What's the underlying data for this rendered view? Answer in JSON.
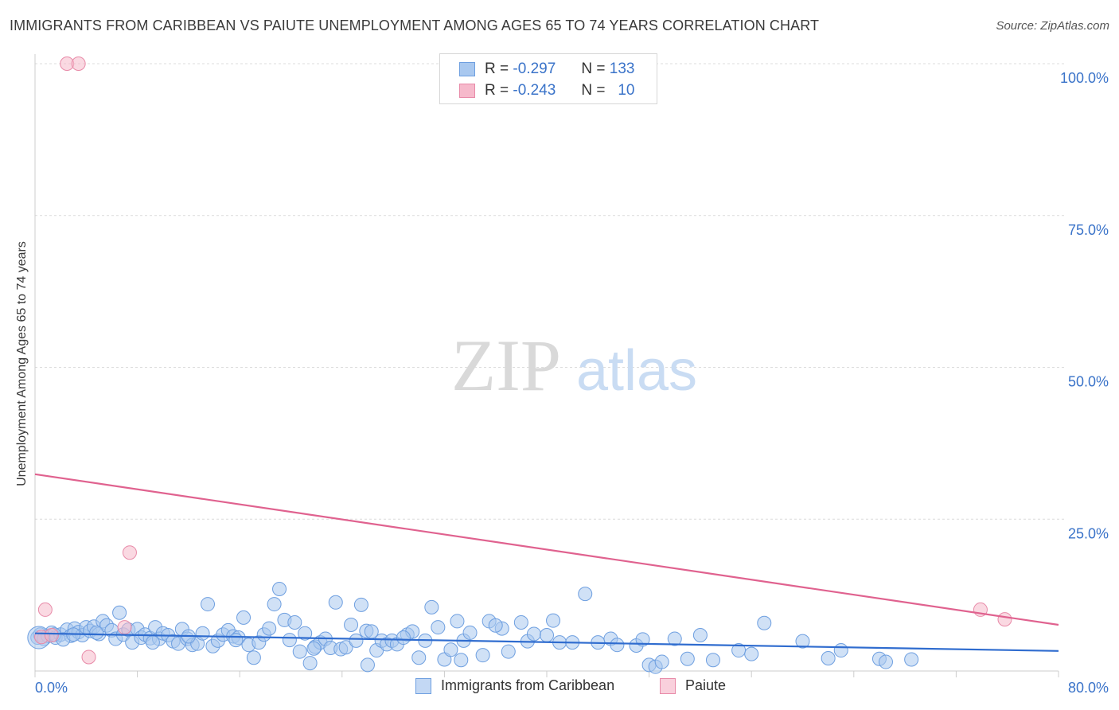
{
  "title": "IMMIGRANTS FROM CARIBBEAN VS PAIUTE UNEMPLOYMENT AMONG AGES 65 TO 74 YEARS CORRELATION CHART",
  "source": "Source: ZipAtlas.com",
  "watermark": {
    "zip": "ZIP",
    "atlas": "atlas"
  },
  "legend": {
    "rows": [
      {
        "r_label": "R =",
        "r_value": "-0.297",
        "n_label": "N =",
        "n_value": "133",
        "color": "#a9c8ef",
        "border": "#6e9fe0"
      },
      {
        "r_label": "R =",
        "r_value": "-0.243",
        "n_label": "N =",
        "n_value": "10",
        "color": "#f6b9cb",
        "border": "#e88aa8"
      }
    ]
  },
  "colors": {
    "blue_fill": "#a9c8ef",
    "blue_stroke": "#6e9fe0",
    "blue_line": "#2f6ccf",
    "pink_fill": "#f6b9cb",
    "pink_stroke": "#e88aa8",
    "pink_line": "#e0628f",
    "axis_text": "#3a73c9"
  },
  "chart_data": {
    "type": "scatter",
    "title": "IMMIGRANTS FROM CARIBBEAN VS PAIUTE UNEMPLOYMENT AMONG AGES 65 TO 74 YEARS CORRELATION CHART",
    "xlabel": "",
    "ylabel": "Unemployment Among Ages 65 to 74 years",
    "xlim": [
      0,
      80
    ],
    "ylim": [
      0,
      100
    ],
    "x_tick_labels": [
      "0.0%",
      "80.0%"
    ],
    "y_ticks": [
      25,
      50,
      75,
      100
    ],
    "y_tick_labels": [
      "25.0%",
      "50.0%",
      "75.0%",
      "100.0%"
    ],
    "grid": true,
    "series": [
      {
        "name": "Immigrants from Caribbean",
        "r": -0.297,
        "n": 133,
        "trend": {
          "x": [
            0,
            80
          ],
          "y": [
            6.2,
            3.3
          ]
        },
        "points": [
          [
            0.2,
            5.5
          ],
          [
            0.4,
            6.0
          ],
          [
            0.7,
            5.3
          ],
          [
            1.0,
            5.8
          ],
          [
            1.3,
            6.3
          ],
          [
            1.6,
            5.5
          ],
          [
            2.0,
            6.0
          ],
          [
            2.5,
            6.8
          ],
          [
            2.8,
            5.8
          ],
          [
            3.1,
            7.0
          ],
          [
            3.4,
            6.4
          ],
          [
            3.7,
            5.9
          ],
          [
            4.0,
            7.2
          ],
          [
            4.3,
            6.6
          ],
          [
            4.6,
            7.3
          ],
          [
            5.0,
            6.1
          ],
          [
            5.3,
            8.2
          ],
          [
            5.6,
            7.5
          ],
          [
            6.0,
            6.7
          ],
          [
            6.3,
            5.3
          ],
          [
            6.6,
            9.6
          ],
          [
            6.9,
            6.0
          ],
          [
            7.3,
            6.8
          ],
          [
            7.6,
            4.7
          ],
          [
            8.0,
            6.9
          ],
          [
            8.3,
            5.5
          ],
          [
            8.6,
            6.0
          ],
          [
            9.0,
            5.4
          ],
          [
            9.4,
            7.2
          ],
          [
            9.7,
            5.3
          ],
          [
            10.0,
            6.2
          ],
          [
            10.4,
            5.9
          ],
          [
            10.8,
            4.9
          ],
          [
            11.2,
            4.5
          ],
          [
            11.5,
            6.9
          ],
          [
            11.9,
            5.3
          ],
          [
            12.3,
            4.3
          ],
          [
            12.7,
            4.5
          ],
          [
            13.1,
            6.2
          ],
          [
            13.5,
            11.0
          ],
          [
            13.9,
            4.1
          ],
          [
            14.3,
            5.0
          ],
          [
            14.7,
            6.0
          ],
          [
            15.1,
            6.7
          ],
          [
            15.5,
            5.7
          ],
          [
            15.9,
            5.5
          ],
          [
            16.3,
            8.8
          ],
          [
            16.7,
            4.3
          ],
          [
            17.1,
            2.2
          ],
          [
            17.5,
            4.7
          ],
          [
            17.9,
            6.0
          ],
          [
            18.3,
            7.0
          ],
          [
            18.7,
            11.0
          ],
          [
            19.1,
            13.5
          ],
          [
            19.5,
            8.4
          ],
          [
            19.9,
            5.1
          ],
          [
            20.3,
            8.0
          ],
          [
            20.7,
            3.2
          ],
          [
            21.1,
            6.2
          ],
          [
            21.5,
            1.3
          ],
          [
            21.9,
            4.0
          ],
          [
            22.3,
            4.7
          ],
          [
            22.7,
            5.3
          ],
          [
            23.1,
            3.8
          ],
          [
            23.5,
            11.3
          ],
          [
            23.9,
            3.6
          ],
          [
            24.3,
            3.9
          ],
          [
            24.7,
            7.6
          ],
          [
            25.1,
            5.0
          ],
          [
            25.5,
            10.9
          ],
          [
            25.9,
            6.6
          ],
          [
            26.3,
            6.5
          ],
          [
            26.7,
            3.4
          ],
          [
            27.1,
            5.0
          ],
          [
            27.5,
            4.4
          ],
          [
            27.9,
            5.0
          ],
          [
            28.3,
            4.4
          ],
          [
            29.1,
            6.0
          ],
          [
            29.5,
            6.5
          ],
          [
            30.0,
            2.2
          ],
          [
            30.5,
            5.0
          ],
          [
            31.0,
            10.5
          ],
          [
            31.5,
            7.2
          ],
          [
            32.0,
            1.9
          ],
          [
            32.5,
            3.5
          ],
          [
            33.0,
            8.2
          ],
          [
            33.5,
            5.0
          ],
          [
            34.0,
            6.3
          ],
          [
            35.0,
            2.6
          ],
          [
            35.5,
            8.2
          ],
          [
            36.5,
            7.0
          ],
          [
            37.0,
            3.2
          ],
          [
            38.0,
            8.0
          ],
          [
            38.5,
            4.9
          ],
          [
            39.0,
            6.1
          ],
          [
            40.0,
            5.9
          ],
          [
            41.0,
            4.7
          ],
          [
            42.0,
            4.7
          ],
          [
            43.0,
            12.7
          ],
          [
            45.0,
            5.3
          ],
          [
            45.5,
            4.3
          ],
          [
            47.0,
            4.2
          ],
          [
            47.5,
            5.2
          ],
          [
            48.0,
            1.0
          ],
          [
            48.5,
            0.7
          ],
          [
            49.0,
            1.5
          ],
          [
            52.0,
            5.9
          ],
          [
            53.0,
            1.8
          ],
          [
            55.0,
            3.4
          ],
          [
            57.0,
            7.9
          ],
          [
            62.0,
            2.1
          ],
          [
            66.0,
            2.0
          ],
          [
            66.5,
            1.5
          ],
          [
            68.5,
            1.9
          ],
          [
            1.5,
            6.0
          ],
          [
            2.2,
            5.2
          ],
          [
            3.0,
            6.0
          ],
          [
            4.8,
            6.3
          ],
          [
            9.2,
            4.7
          ],
          [
            12.0,
            5.7
          ],
          [
            15.7,
            5.1
          ],
          [
            21.8,
            3.7
          ],
          [
            26.0,
            1.0
          ],
          [
            28.8,
            5.5
          ],
          [
            33.3,
            1.8
          ],
          [
            36.0,
            7.5
          ],
          [
            40.5,
            8.3
          ],
          [
            44.0,
            4.7
          ],
          [
            50.0,
            5.3
          ],
          [
            51.0,
            2.0
          ],
          [
            56.0,
            2.8
          ],
          [
            60.0,
            4.9
          ],
          [
            63.0,
            3.4
          ]
        ]
      },
      {
        "name": "Paiute",
        "r": -0.243,
        "n": 10,
        "trend": {
          "x": [
            0,
            80
          ],
          "y": [
            32.4,
            7.6
          ]
        },
        "points": [
          [
            0.5,
            5.6
          ],
          [
            0.8,
            10.1
          ],
          [
            1.3,
            5.9
          ],
          [
            2.5,
            100.0
          ],
          [
            3.4,
            100.0
          ],
          [
            4.2,
            2.3
          ],
          [
            7.0,
            7.2
          ],
          [
            7.4,
            19.5
          ],
          [
            73.9,
            10.1
          ],
          [
            75.8,
            8.5
          ]
        ]
      }
    ]
  },
  "bottom_legend": [
    {
      "label": "Immigrants from Caribbean"
    },
    {
      "label": "Paiute"
    }
  ]
}
